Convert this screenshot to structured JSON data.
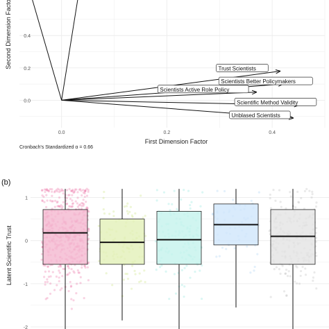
{
  "chart_data": [
    {
      "type": "biplot",
      "xlabel": "First Dimension Factor",
      "ylabel": "Second Dimension Factor",
      "xlim": [
        -0.08,
        0.5
      ],
      "ylim": [
        -0.17,
        0.62
      ],
      "x_ticks": [
        "0.0",
        "0.2",
        "0.4"
      ],
      "y_ticks": [
        "0.0",
        "0.2",
        "0.4"
      ],
      "x_tick_values": [
        0.0,
        0.2,
        0.4
      ],
      "y_tick_values": [
        0.0,
        0.2,
        0.4
      ],
      "grid": true,
      "vectors": [
        {
          "label": "",
          "x": -0.058,
          "y": 0.65
        },
        {
          "label": "",
          "x": 0.032,
          "y": 0.65
        },
        {
          "label": "Trust Scientists",
          "x": 0.415,
          "y": 0.18
        },
        {
          "label": "Scientists Better Policymakers",
          "x": 0.42,
          "y": 0.1
        },
        {
          "label": "Scientists Active Role Policy",
          "x": 0.37,
          "y": 0.05
        },
        {
          "label": "Scientific Method Validity",
          "x": 0.45,
          "y": -0.03
        },
        {
          "label": "Unblased Scientists",
          "x": 0.44,
          "y": -0.11
        }
      ],
      "annotation": "Cronbach's Standardized α = 0.66"
    },
    {
      "type": "box",
      "panel_label": "(b)",
      "ylabel": "Latent Scientific Trust",
      "ylim": [
        -2.05,
        1.25
      ],
      "y_ticks": [
        "1",
        "0",
        "-1",
        "-2"
      ],
      "y_tick_values": [
        1,
        0,
        -1,
        -2
      ],
      "grid": true,
      "boxes": [
        {
          "color": "#f4b8d0",
          "dot_color": "#e8609a",
          "q1": -0.55,
          "median": 0.18,
          "q3": 0.72,
          "whisker_low": -2.1,
          "whisker_high": 1.2
        },
        {
          "color": "#e2f0b8",
          "dot_color": "#c3e06a",
          "q1": -0.55,
          "median": -0.04,
          "q3": 0.5,
          "whisker_low": -1.85,
          "whisker_high": 1.2
        },
        {
          "color": "#c4f2ec",
          "dot_color": "#7fe3d6",
          "q1": -0.55,
          "median": 0.02,
          "q3": 0.68,
          "whisker_low": -2.1,
          "whisker_high": 1.2
        },
        {
          "color": "#d0e6fb",
          "dot_color": "#9cc8f2",
          "q1": -0.1,
          "median": 0.37,
          "q3": 0.85,
          "whisker_low": -1.55,
          "whisker_high": 1.2
        },
        {
          "color": "#e4e4e4",
          "dot_color": "#b5b5b5",
          "q1": -0.55,
          "median": 0.1,
          "q3": 0.72,
          "whisker_low": -2.1,
          "whisker_high": 1.2
        }
      ]
    }
  ]
}
